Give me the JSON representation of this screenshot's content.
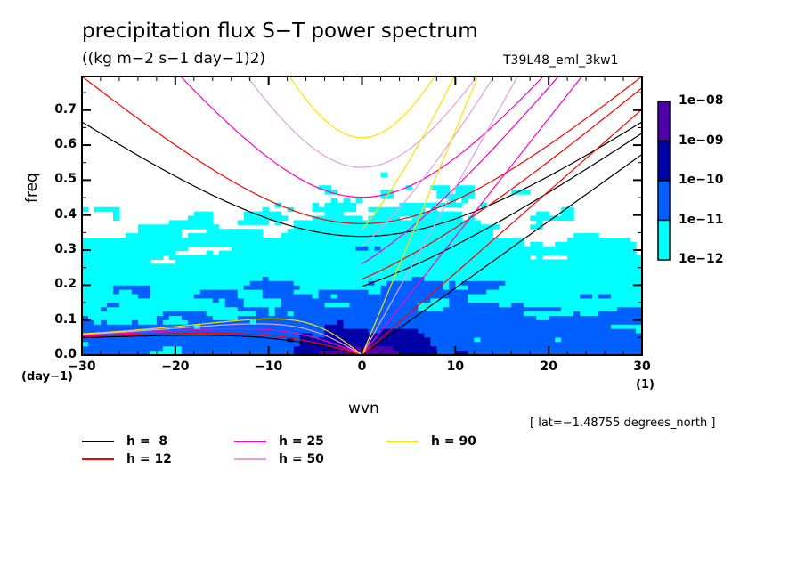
{
  "chart_data": {
    "type": "heatmap",
    "title": "precipitation flux S−T power spectrum",
    "subtitle": "((kg m−2 s−1 day−1)2)",
    "run_label": "T39L48_eml_3kw1",
    "xlabel": "wvn",
    "ylabel": "freq",
    "x_unit": "(1)",
    "y_unit": "(day−1)",
    "xlim": [
      -30,
      30
    ],
    "ylim": [
      0.0,
      0.8
    ],
    "x_ticks": [
      "−30",
      "−20",
      "−10",
      "0",
      "10",
      "20",
      "30"
    ],
    "x_tick_values": [
      -30,
      -20,
      -10,
      0,
      10,
      20,
      30
    ],
    "y_ticks": [
      "0.0",
      "0.1",
      "0.2",
      "0.3",
      "0.4",
      "0.5",
      "0.6",
      "0.7"
    ],
    "y_tick_values": [
      0.0,
      0.1,
      0.2,
      0.3,
      0.4,
      0.5,
      0.6,
      0.7
    ],
    "annotation": "[ lat=−1.48755 degrees_north ]",
    "colorbar": {
      "labels": [
        "1e−08",
        "1e−09",
        "1e−10",
        "1e−11",
        "1e−12"
      ],
      "levels": [
        1e-12,
        1e-11,
        1e-10,
        1e-09,
        1e-08
      ],
      "colors": [
        "#00ffff",
        "#0060ff",
        "#0000a8",
        "#5000a8"
      ]
    },
    "dispersion_curves": [
      {
        "label": "h =  8",
        "h": 8,
        "color": "#000000"
      },
      {
        "label": "h = 12",
        "h": 12,
        "color": "#ff0000"
      },
      {
        "label": "h = 25",
        "h": 25,
        "color": "#ff00c0"
      },
      {
        "label": "h = 50",
        "h": 50,
        "color": "#e0a0e0"
      },
      {
        "label": "h = 90",
        "h": 90,
        "color": "#ffe000"
      }
    ]
  }
}
